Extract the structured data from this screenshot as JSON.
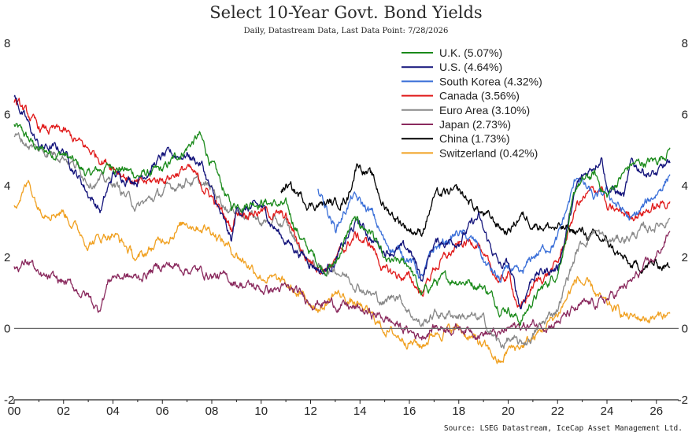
{
  "chart_data": {
    "type": "line",
    "title": "Select 10-Year Govt. Bond Yields",
    "subtitle": "Daily, Datastream Data, Last Data Point: 7/28/2026",
    "source": "Source: LSEG Datastream, IceCap Asset Management Ltd.",
    "xlabel": "",
    "ylabel": "",
    "xlim": [
      2000,
      2026.9
    ],
    "ylim": [
      -2,
      8
    ],
    "x_tick_labels": [
      "00",
      "02",
      "04",
      "06",
      "08",
      "10",
      "12",
      "14",
      "16",
      "18",
      "20",
      "22",
      "24",
      "26"
    ],
    "x_tick_values": [
      2000,
      2002,
      2004,
      2006,
      2008,
      2010,
      2012,
      2014,
      2016,
      2018,
      2020,
      2022,
      2024,
      2026
    ],
    "y_ticks": [
      -2,
      0,
      2,
      4,
      6,
      8
    ],
    "y_axis": "both sides",
    "grid": false,
    "legend_position": "top-center",
    "series": [
      {
        "name": "U.K. (5.07%)",
        "color": "#1a8a1a",
        "x": [
          2000,
          2001,
          2002,
          2003,
          2004,
          2005,
          2006,
          2007,
          2007.5,
          2008,
          2008.8,
          2009,
          2010,
          2011,
          2011.8,
          2012.5,
          2013,
          2013.7,
          2014.5,
          2015,
          2016,
          2016.5,
          2017,
          2018,
          2019,
          2019.7,
          2020,
          2020.5,
          2021,
          2022,
          2022.8,
          2023.5,
          2024,
          2024.5,
          2025,
          2026,
          2026.55
        ],
        "y": [
          5.7,
          5.0,
          4.9,
          4.3,
          4.6,
          4.3,
          4.4,
          5.1,
          5.4,
          4.6,
          3.4,
          3.5,
          3.6,
          3.4,
          2.3,
          1.7,
          1.8,
          3.0,
          2.7,
          1.8,
          1.8,
          0.9,
          1.3,
          1.4,
          1.2,
          0.6,
          0.6,
          0.2,
          0.8,
          1.6,
          4.0,
          4.3,
          3.7,
          4.2,
          4.6,
          4.7,
          5.07
        ]
      },
      {
        "name": "U.S. (4.64%)",
        "color": "#12127a",
        "x": [
          2000,
          2001,
          2002,
          2003,
          2003.5,
          2004,
          2005,
          2006,
          2007,
          2007.6,
          2008,
          2008.8,
          2009,
          2010,
          2010.8,
          2011.8,
          2012.5,
          2013,
          2013.9,
          2014.5,
          2015,
          2016,
          2016.5,
          2017,
          2018,
          2018.8,
          2019,
          2019.7,
          2020,
          2020.5,
          2021,
          2022,
          2022.8,
          2023.8,
          2024,
          2024.7,
          2025,
          2026,
          2026.55
        ],
        "y": [
          6.5,
          5.1,
          5.0,
          3.8,
          3.3,
          4.3,
          4.2,
          4.8,
          4.9,
          4.6,
          3.8,
          2.4,
          3.3,
          3.4,
          2.6,
          2.0,
          1.6,
          1.9,
          3.0,
          2.5,
          2.2,
          2.2,
          1.4,
          2.4,
          2.5,
          3.1,
          2.7,
          1.7,
          1.8,
          0.6,
          1.5,
          1.7,
          4.0,
          4.9,
          4.0,
          3.7,
          4.6,
          4.3,
          4.64
        ]
      },
      {
        "name": "South Korea (4.32%)",
        "color": "#3a6fd8",
        "x": [
          2012.3,
          2013,
          2013.7,
          2014.5,
          2015,
          2016,
          2016.5,
          2017,
          2018,
          2018.8,
          2019,
          2019.7,
          2020,
          2020.5,
          2021,
          2022,
          2022.8,
          2023.5,
          2024,
          2025,
          2026,
          2026.55
        ],
        "y": [
          4.0,
          2.8,
          3.7,
          3.2,
          2.4,
          2.0,
          1.4,
          2.2,
          2.7,
          2.3,
          1.9,
          1.3,
          1.7,
          1.4,
          2.0,
          2.5,
          4.3,
          3.6,
          3.8,
          3.0,
          3.8,
          4.32
        ]
      },
      {
        "name": "Canada (3.56%)",
        "color": "#e01a1a",
        "x": [
          2000,
          2001,
          2002,
          2003,
          2004,
          2005,
          2006,
          2007,
          2008,
          2008.8,
          2009,
          2010,
          2011,
          2011.8,
          2012.5,
          2013,
          2013.8,
          2014.5,
          2015,
          2016,
          2016.5,
          2017,
          2018,
          2018.8,
          2019,
          2019.7,
          2020,
          2020.5,
          2021,
          2022,
          2022.8,
          2023.8,
          2024,
          2025,
          2026,
          2026.55
        ],
        "y": [
          6.4,
          5.6,
          5.5,
          5.0,
          4.6,
          4.0,
          4.2,
          4.5,
          3.7,
          2.8,
          3.3,
          3.3,
          3.1,
          2.0,
          1.7,
          1.9,
          2.6,
          2.3,
          1.6,
          1.4,
          1.0,
          1.7,
          2.3,
          2.5,
          1.9,
          1.3,
          1.5,
          0.5,
          1.2,
          1.8,
          3.5,
          4.0,
          3.3,
          3.2,
          3.4,
          3.56
        ]
      },
      {
        "name": "Euro Area (3.10%)",
        "color": "#888888",
        "x": [
          2000,
          2001,
          2002,
          2003,
          2004,
          2005,
          2006,
          2007,
          2008,
          2008.8,
          2009,
          2010,
          2011,
          2011.8,
          2012.5,
          2013,
          2014,
          2015,
          2015.5,
          2016,
          2016.5,
          2017,
          2018,
          2019,
          2019.7,
          2020,
          2020.5,
          2021,
          2022,
          2022.8,
          2023.5,
          2024,
          2025,
          2026,
          2026.55
        ],
        "y": [
          5.4,
          5.0,
          4.9,
          4.2,
          4.1,
          3.4,
          3.8,
          4.2,
          3.9,
          3.3,
          3.4,
          3.0,
          2.9,
          2.0,
          1.6,
          1.7,
          1.2,
          0.7,
          1.0,
          0.5,
          0.1,
          0.4,
          0.4,
          0.2,
          -0.5,
          -0.3,
          -0.5,
          -0.2,
          0.6,
          2.2,
          2.8,
          2.4,
          2.6,
          2.9,
          3.1
        ]
      },
      {
        "name": "Japan (2.73%)",
        "color": "#8a2a5e",
        "x": [
          2000,
          2000.7,
          2001,
          2002,
          2003,
          2003.4,
          2003.8,
          2004,
          2005,
          2006,
          2007,
          2008,
          2009,
          2010,
          2011,
          2012,
          2013,
          2014,
          2015,
          2016,
          2016.5,
          2017,
          2018,
          2019,
          2019.7,
          2020,
          2021,
          2022,
          2023,
          2024,
          2025,
          2026,
          2026.55
        ],
        "y": [
          1.7,
          1.9,
          1.4,
          1.3,
          0.9,
          0.5,
          1.3,
          1.5,
          1.4,
          1.8,
          1.7,
          1.5,
          1.3,
          1.1,
          1.1,
          0.8,
          0.7,
          0.5,
          0.3,
          -0.1,
          -0.2,
          0.05,
          0.05,
          -0.1,
          -0.2,
          0.0,
          0.1,
          0.2,
          0.6,
          0.8,
          1.3,
          2.0,
          2.73
        ]
      },
      {
        "name": "China (1.73%)",
        "color": "#000000",
        "x": [
          2010.8,
          2011,
          2012,
          2013,
          2013.5,
          2013.9,
          2014.5,
          2015,
          2016,
          2016.5,
          2017,
          2018,
          2019,
          2020,
          2020.5,
          2021,
          2022,
          2023,
          2024,
          2025,
          2026,
          2026.55
        ],
        "y": [
          3.9,
          4.0,
          3.5,
          3.5,
          3.7,
          4.7,
          4.2,
          3.4,
          2.8,
          2.7,
          3.7,
          3.8,
          3.2,
          2.7,
          3.2,
          3.0,
          2.8,
          2.7,
          2.4,
          1.7,
          1.8,
          1.73
        ]
      },
      {
        "name": "Switzerland (0.42%)",
        "color": "#f0a020",
        "x": [
          2000,
          2000.6,
          2001,
          2002,
          2003,
          2004,
          2005,
          2006,
          2007,
          2008,
          2008.8,
          2009,
          2010,
          2011,
          2011.8,
          2012.5,
          2013,
          2014,
          2015,
          2015.5,
          2016,
          2016.5,
          2017,
          2018,
          2019,
          2019.7,
          2020,
          2020.5,
          2021,
          2022,
          2022.8,
          2023.5,
          2024,
          2025,
          2026,
          2026.55
        ],
        "y": [
          3.5,
          4.1,
          3.4,
          3.3,
          2.4,
          2.7,
          1.9,
          2.5,
          3.0,
          2.8,
          2.2,
          2.1,
          1.5,
          1.2,
          0.8,
          0.6,
          1.0,
          0.6,
          0.0,
          -0.2,
          -0.3,
          -0.5,
          -0.1,
          0.0,
          -0.5,
          -1.0,
          -0.6,
          -0.5,
          -0.3,
          0.4,
          1.4,
          1.0,
          0.6,
          0.3,
          0.3,
          0.42
        ]
      }
    ]
  }
}
